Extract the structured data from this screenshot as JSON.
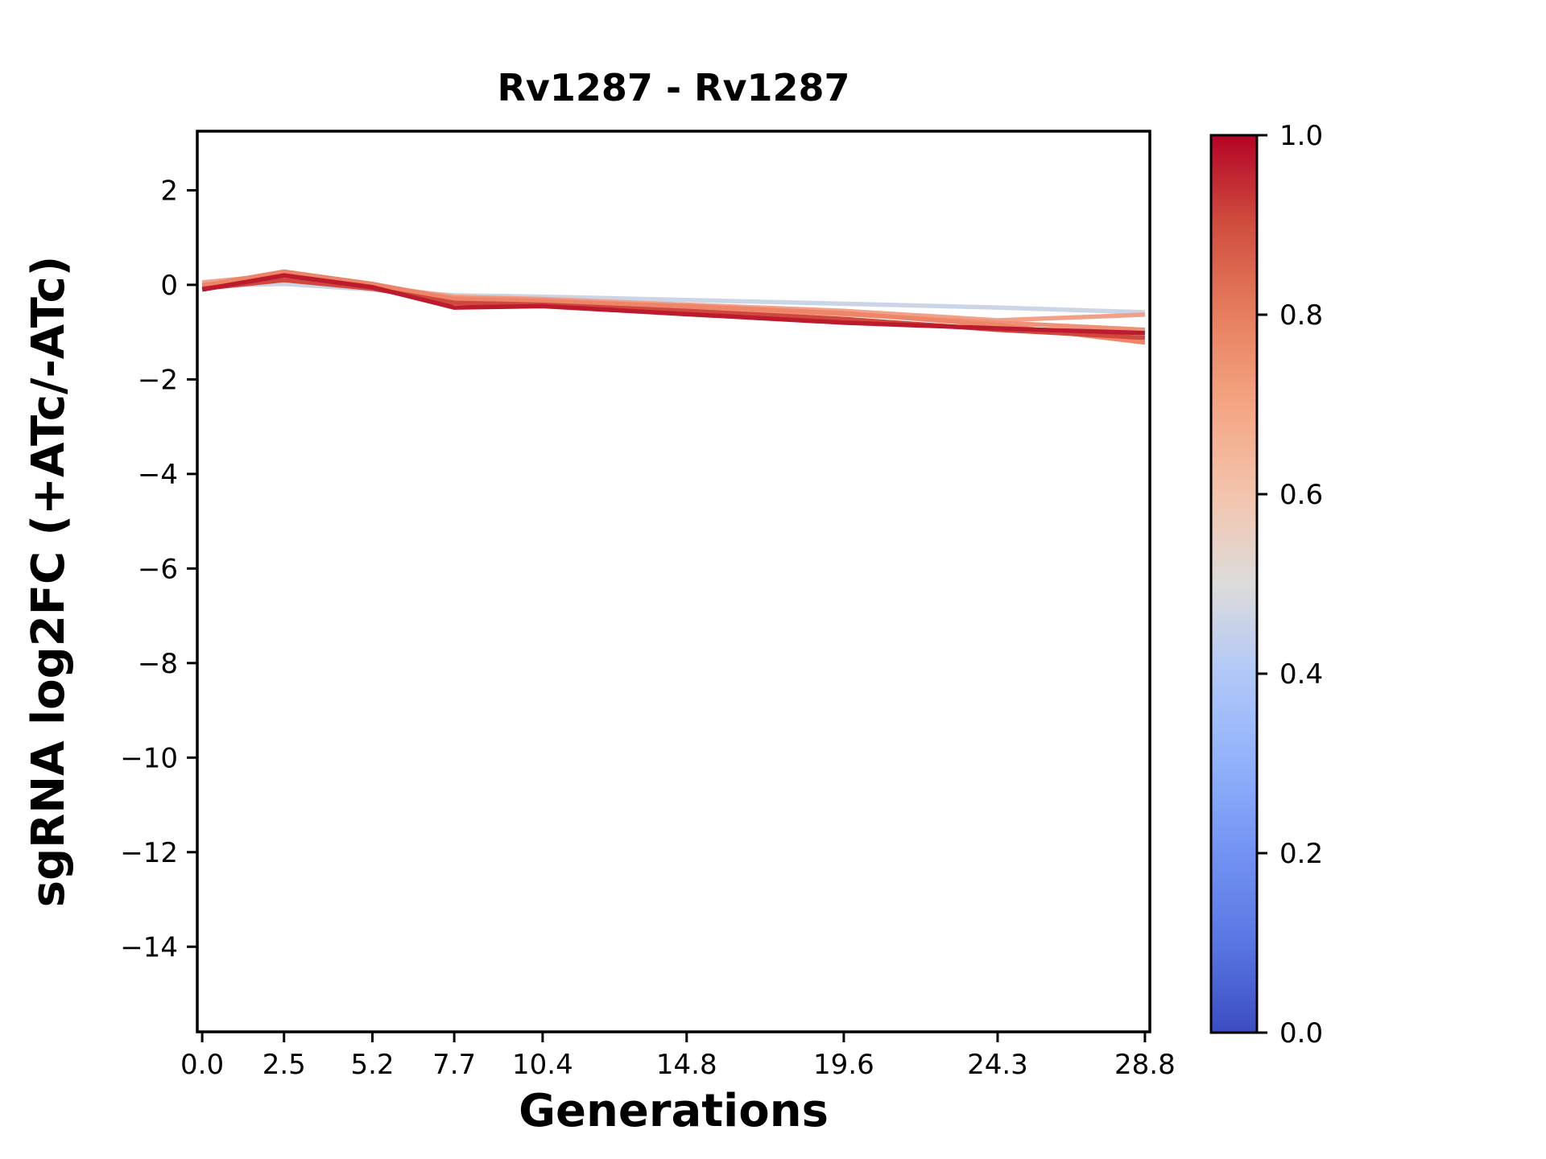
{
  "title": "Rv1287 - Rv1287",
  "colors": {
    "background": "#ffffff",
    "spine": "#000000",
    "text": "#000000"
  },
  "chart_data": {
    "type": "line",
    "title": "Rv1287 - Rv1287",
    "xlabel": "Generations",
    "ylabel": "sgRNA log2FC (+ATc/-ATc)",
    "grid": false,
    "legend": "none",
    "x": [
      0.0,
      2.5,
      5.2,
      7.7,
      10.4,
      14.8,
      19.6,
      24.3,
      28.8
    ],
    "x_tick_labels": [
      "0.0",
      "2.5",
      "5.2",
      "7.7",
      "10.4",
      "14.8",
      "19.6",
      "24.3",
      "28.8"
    ],
    "y_ticks": [
      2,
      0,
      -2,
      -4,
      -6,
      -8,
      -10,
      -12,
      -14
    ],
    "y_tick_labels": [
      "2",
      "0",
      "−2",
      "−4",
      "−6",
      "−8",
      "−10",
      "−12",
      "−14"
    ],
    "xlim": [
      -0.15,
      28.95
    ],
    "ylim": [
      -15.8,
      3.25
    ],
    "series": [
      {
        "name": "line-1",
        "colormap_value": 0.45,
        "color": "#ccd5e5",
        "values": [
          -0.02,
          0.02,
          -0.1,
          -0.22,
          -0.25,
          -0.32,
          -0.4,
          -0.48,
          -0.58
        ]
      },
      {
        "name": "line-2",
        "colormap_value": 0.68,
        "color": "#f2a188",
        "values": [
          0.05,
          0.22,
          -0.02,
          -0.25,
          -0.3,
          -0.42,
          -0.55,
          -0.75,
          -0.63
        ]
      },
      {
        "name": "line-3",
        "colormap_value": 0.73,
        "color": "#ef9176",
        "values": [
          0.0,
          0.15,
          -0.05,
          -0.28,
          -0.32,
          -0.48,
          -0.62,
          -0.8,
          -0.95
        ]
      },
      {
        "name": "line-4",
        "colormap_value": 0.78,
        "color": "#ee8468",
        "values": [
          -0.02,
          0.28,
          0.02,
          -0.3,
          -0.35,
          -0.45,
          -0.6,
          -0.85,
          -1.22
        ]
      },
      {
        "name": "line-5",
        "colormap_value": 0.9,
        "color": "#d0473d",
        "values": [
          -0.08,
          0.1,
          -0.08,
          -0.38,
          -0.42,
          -0.55,
          -0.72,
          -0.95,
          -1.12
        ]
      },
      {
        "name": "line-6",
        "colormap_value": 0.97,
        "color": "#bb1b2c",
        "values": [
          -0.1,
          0.2,
          -0.05,
          -0.48,
          -0.45,
          -0.62,
          -0.8,
          -0.92,
          -1.02
        ]
      }
    ],
    "colorbar": {
      "cmap": "coolwarm",
      "min": 0.0,
      "max": 1.0,
      "tick_labels": [
        "1.0",
        "0.8",
        "0.6",
        "0.4",
        "0.2",
        "0.0"
      ],
      "gradient_stops": [
        {
          "pos": 1.0,
          "color": "#b40426"
        },
        {
          "pos": 0.9,
          "color": "#d04e3e"
        },
        {
          "pos": 0.8,
          "color": "#e67e5f"
        },
        {
          "pos": 0.7,
          "color": "#f4a582"
        },
        {
          "pos": 0.6,
          "color": "#f4c4ad"
        },
        {
          "pos": 0.5,
          "color": "#dddcdb"
        },
        {
          "pos": 0.4,
          "color": "#b1c8f8"
        },
        {
          "pos": 0.3,
          "color": "#91b1fb"
        },
        {
          "pos": 0.2,
          "color": "#7293f3"
        },
        {
          "pos": 0.1,
          "color": "#5977e3"
        },
        {
          "pos": 0.0,
          "color": "#3b4cc0"
        }
      ]
    }
  }
}
